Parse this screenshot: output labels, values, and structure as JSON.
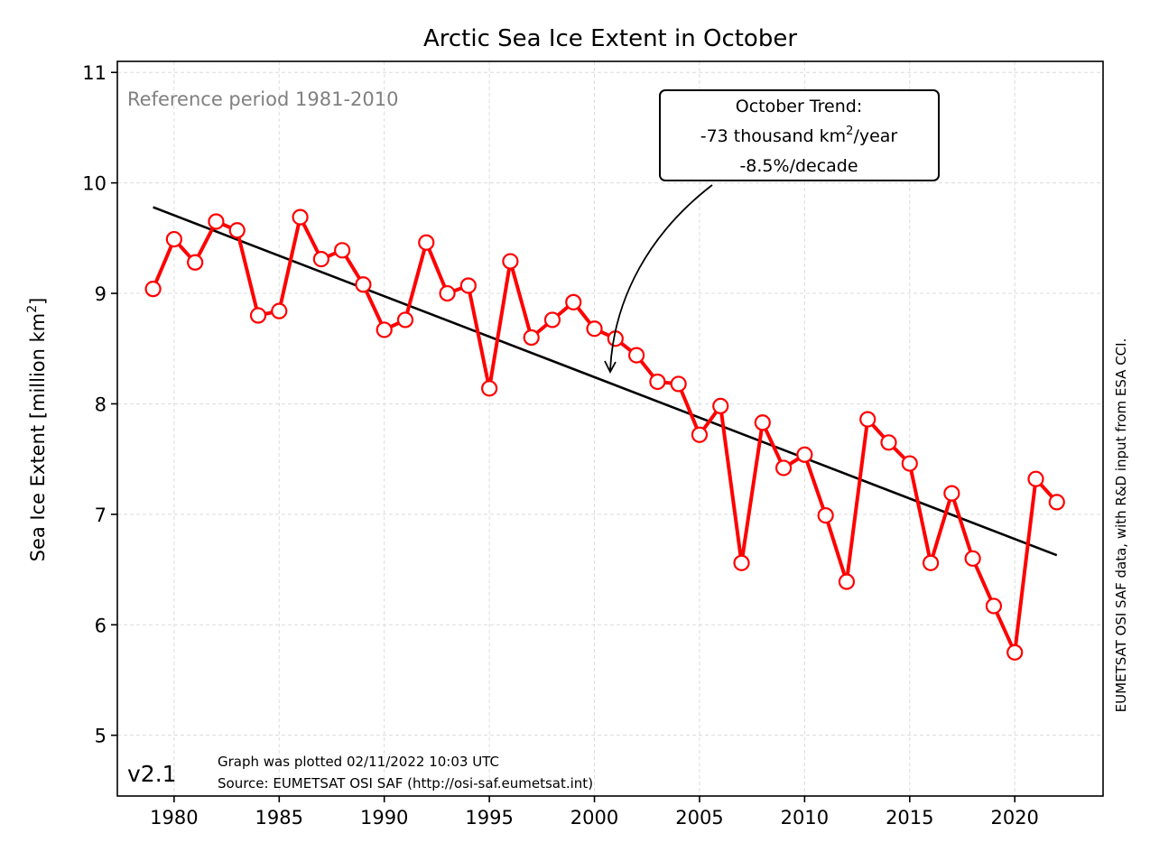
{
  "chart_data": {
    "type": "line",
    "title": "Arctic Sea Ice Extent in October",
    "ylabel": "Sea Ice Extent [million km",
    "ylabel_sup": "2",
    "ylabel_end": "]",
    "xlim": [
      1977.3,
      2024.2
    ],
    "ylim": [
      4.45,
      11.1
    ],
    "xticks": [
      1980,
      1985,
      1990,
      1995,
      2000,
      2005,
      2010,
      2015,
      2020
    ],
    "yticks": [
      5,
      6,
      7,
      8,
      9,
      10,
      11
    ],
    "grid": true,
    "series": [
      {
        "color": "#ff0000",
        "marker": "open-circle",
        "x": [
          1979,
          1980,
          1981,
          1982,
          1983,
          1984,
          1985,
          1986,
          1987,
          1988,
          1989,
          1990,
          1991,
          1992,
          1993,
          1994,
          1995,
          1996,
          1997,
          1998,
          1999,
          2000,
          2001,
          2002,
          2003,
          2004,
          2005,
          2006,
          2007,
          2008,
          2009,
          2010,
          2011,
          2012,
          2013,
          2014,
          2015,
          2016,
          2017,
          2018,
          2019,
          2020,
          2021,
          2022
        ],
        "y": [
          9.04,
          9.49,
          9.28,
          9.65,
          9.57,
          8.8,
          8.84,
          9.69,
          9.31,
          9.39,
          9.08,
          8.67,
          8.76,
          9.46,
          9.0,
          9.07,
          8.14,
          9.29,
          8.6,
          8.76,
          8.92,
          8.68,
          8.59,
          8.44,
          8.2,
          8.18,
          7.72,
          7.98,
          6.56,
          7.83,
          7.42,
          7.54,
          6.99,
          6.39,
          7.86,
          7.65,
          7.46,
          6.56,
          7.19,
          6.6,
          6.17,
          5.75,
          7.32,
          7.11
        ]
      }
    ],
    "trend": {
      "color": "#000000",
      "x": [
        1979,
        2022
      ],
      "y": [
        9.78,
        6.63
      ]
    },
    "annotation": {
      "line1": "October Trend:",
      "line2_pre": "-73 thousand km",
      "line2_sup": "2",
      "line2_post": "/year",
      "line3": "-8.5%/decade",
      "arrow_target": [
        2000.6,
        8.27
      ]
    },
    "reference_text": "Reference period 1981-2010",
    "version": "v2.1",
    "plotted_note": "Graph was plotted 02/11/2022 10:03 UTC",
    "source_note": "Source: EUMETSAT OSI SAF (http://osi-saf.eumetsat.int)",
    "credit": "EUMETSAT OSI SAF data, with R&D input from ESA CCI."
  }
}
